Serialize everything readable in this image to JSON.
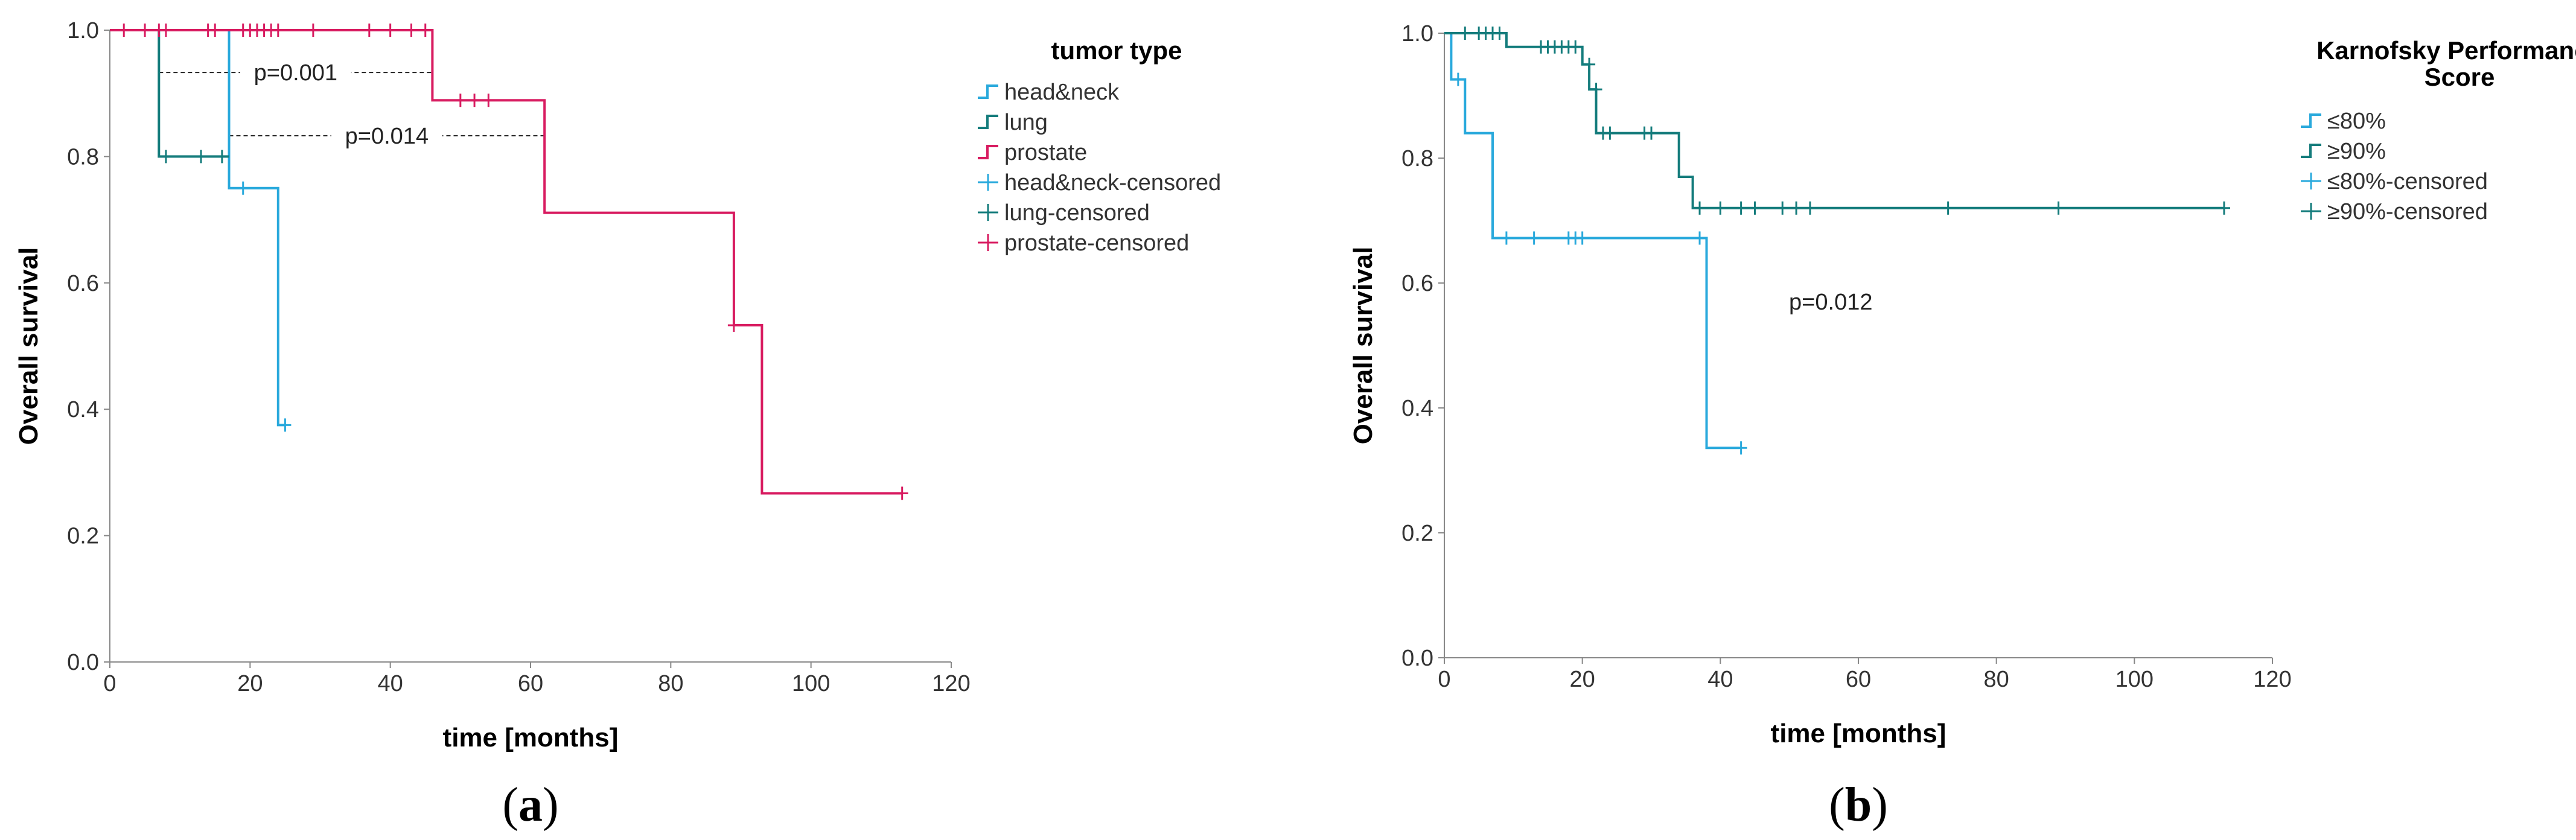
{
  "chart_data": [
    {
      "type": "line",
      "panel_label": "a",
      "title": "",
      "xlabel": "time [months]",
      "ylabel": "Overall survival",
      "xlim": [
        0,
        120
      ],
      "ylim": [
        0,
        1.0
      ],
      "xticks": [
        "0",
        "20",
        "40",
        "60",
        "80",
        "100",
        "120"
      ],
      "yticks": [
        "0.0",
        "0.2",
        "0.4",
        "0.6",
        "0.8",
        "1.0"
      ],
      "legend_title": "tumor type",
      "legend_labels": [
        "head&neck",
        "lung",
        "prostate",
        "head&neck-censored",
        "lung-censored",
        "prostate-censored"
      ],
      "series": [
        {
          "name": "head&neck",
          "color": "#29a9dc",
          "steps": [
            [
              0,
              1.0
            ],
            [
              17,
              1.0
            ],
            [
              17,
              0.75
            ],
            [
              24,
              0.75
            ],
            [
              24,
              0.375
            ],
            [
              25,
              0.375
            ]
          ],
          "censored": [
            [
              19,
              0.75
            ],
            [
              25,
              0.375
            ]
          ]
        },
        {
          "name": "lung",
          "color": "#147c7c",
          "steps": [
            [
              0,
              1.0
            ],
            [
              7,
              1.0
            ],
            [
              7,
              0.8
            ],
            [
              17,
              0.8
            ]
          ],
          "censored": [
            [
              8,
              0.8
            ],
            [
              13,
              0.8
            ],
            [
              16,
              0.8
            ]
          ]
        },
        {
          "name": "prostate",
          "color": "#d81b60",
          "steps": [
            [
              0,
              1.0
            ],
            [
              46,
              1.0
            ],
            [
              46,
              0.889
            ],
            [
              62,
              0.889
            ],
            [
              62,
              0.711
            ],
            [
              89,
              0.711
            ],
            [
              89,
              0.533
            ],
            [
              93,
              0.533
            ],
            [
              93,
              0.267
            ],
            [
              113,
              0.267
            ]
          ],
          "censored": [
            [
              2,
              1.0
            ],
            [
              5,
              1.0
            ],
            [
              7,
              1.0
            ],
            [
              8,
              1.0
            ],
            [
              14,
              1.0
            ],
            [
              15,
              1.0
            ],
            [
              19,
              1.0
            ],
            [
              20,
              1.0
            ],
            [
              21,
              1.0
            ],
            [
              22,
              1.0
            ],
            [
              23,
              1.0
            ],
            [
              24,
              1.0
            ],
            [
              29,
              1.0
            ],
            [
              37,
              1.0
            ],
            [
              40,
              1.0
            ],
            [
              43,
              1.0
            ],
            [
              45,
              1.0
            ],
            [
              50,
              0.889
            ],
            [
              52,
              0.889
            ],
            [
              54,
              0.889
            ],
            [
              89,
              0.533
            ],
            [
              113,
              0.267
            ]
          ]
        }
      ],
      "annotations": [
        {
          "text": "p=0.001",
          "x_from": 7,
          "x_to": 46,
          "y": 0.933
        },
        {
          "text": "p=0.014",
          "x_from": 17,
          "x_to": 62,
          "y": 0.833
        }
      ]
    },
    {
      "type": "line",
      "panel_label": "b",
      "title": "",
      "xlabel": "time [months]",
      "ylabel": "Overall survival",
      "xlim": [
        0,
        120
      ],
      "ylim": [
        0,
        1.0
      ],
      "xticks": [
        "0",
        "20",
        "40",
        "60",
        "80",
        "100",
        "120"
      ],
      "yticks": [
        "0.0",
        "0.2",
        "0.4",
        "0.6",
        "0.8",
        "1.0"
      ],
      "legend_title": "Karnofsky Performance Score",
      "legend_title_lines": [
        "Karnofsky Performance",
        "Score"
      ],
      "legend_labels": [
        "≤80%",
        "≥90%",
        "≤80%-censored",
        "≥90%-censored"
      ],
      "series": [
        {
          "name": "≤80%",
          "color": "#29a9dc",
          "steps": [
            [
              0,
              1.0
            ],
            [
              1,
              1.0
            ],
            [
              1,
              0.926
            ],
            [
              3,
              0.926
            ],
            [
              3,
              0.84
            ],
            [
              7,
              0.84
            ],
            [
              7,
              0.672
            ],
            [
              38,
              0.672
            ],
            [
              38,
              0.336
            ],
            [
              43,
              0.336
            ]
          ],
          "censored": [
            [
              2,
              0.926
            ],
            [
              9,
              0.672
            ],
            [
              13,
              0.672
            ],
            [
              18,
              0.672
            ],
            [
              19,
              0.672
            ],
            [
              20,
              0.672
            ],
            [
              37,
              0.672
            ],
            [
              43,
              0.336
            ]
          ]
        },
        {
          "name": "≥90%",
          "color": "#147c7c",
          "steps": [
            [
              0,
              1.0
            ],
            [
              9,
              1.0
            ],
            [
              9,
              0.978
            ],
            [
              20,
              0.978
            ],
            [
              20,
              0.95
            ],
            [
              21,
              0.95
            ],
            [
              21,
              0.91
            ],
            [
              22,
              0.91
            ],
            [
              22,
              0.84
            ],
            [
              34,
              0.84
            ],
            [
              34,
              0.77
            ],
            [
              36,
              0.77
            ],
            [
              36,
              0.72
            ],
            [
              113,
              0.72
            ]
          ],
          "censored": [
            [
              3,
              1.0
            ],
            [
              5,
              1.0
            ],
            [
              6,
              1.0
            ],
            [
              7,
              1.0
            ],
            [
              8,
              1.0
            ],
            [
              14,
              0.978
            ],
            [
              15,
              0.978
            ],
            [
              16,
              0.978
            ],
            [
              17,
              0.978
            ],
            [
              18,
              0.978
            ],
            [
              19,
              0.978
            ],
            [
              21,
              0.95
            ],
            [
              22,
              0.91
            ],
            [
              23,
              0.84
            ],
            [
              24,
              0.84
            ],
            [
              29,
              0.84
            ],
            [
              30,
              0.84
            ],
            [
              37,
              0.72
            ],
            [
              40,
              0.72
            ],
            [
              43,
              0.72
            ],
            [
              45,
              0.72
            ],
            [
              49,
              0.72
            ],
            [
              51,
              0.72
            ],
            [
              53,
              0.72
            ],
            [
              73,
              0.72
            ],
            [
              89,
              0.72
            ],
            [
              113,
              0.72
            ]
          ]
        }
      ],
      "annotations": [
        {
          "text": "p=0.012",
          "x": 56,
          "y": 0.57
        }
      ]
    }
  ]
}
